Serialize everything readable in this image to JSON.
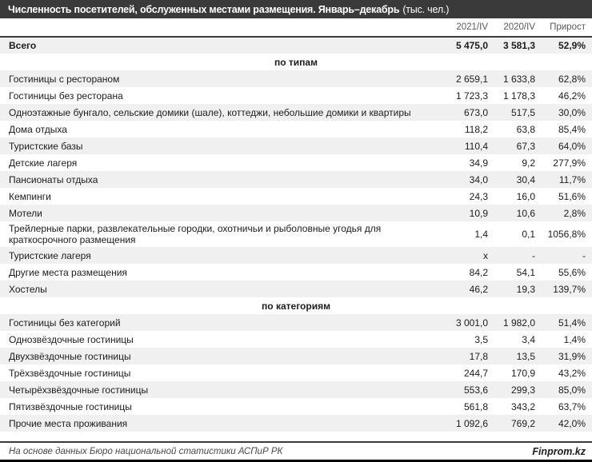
{
  "title": {
    "main": "Численность посетителей, обслуженных местами размещения. Январь–декабрь",
    "units": "(тыс. чел.)"
  },
  "chart_data": {
    "type": "table",
    "title": "Численность посетителей, обслуженных местами размещения. Январь–декабрь (тыс. чел.)",
    "columns": [
      "2021/IV",
      "2020/IV",
      "Прирост"
    ],
    "rows": [
      {
        "kind": "total",
        "label": "Всего",
        "values": [
          "5 475,0",
          "3 581,3",
          "52,9%"
        ]
      },
      {
        "kind": "section",
        "label": "по типам",
        "values": []
      },
      {
        "kind": "data",
        "label": "Гостиницы с рестораном",
        "values": [
          "2 659,1",
          "1 633,8",
          "62,8%"
        ]
      },
      {
        "kind": "data",
        "label": "Гостиницы без ресторана",
        "values": [
          "1 723,3",
          "1 178,3",
          "46,2%"
        ]
      },
      {
        "kind": "data",
        "label": "Одноэтажные бунгало, сельские домики (шале), коттеджи, небольшие домики и квартиры",
        "values": [
          "673,0",
          "517,5",
          "30,0%"
        ]
      },
      {
        "kind": "data",
        "label": "Дома отдыха",
        "values": [
          "118,2",
          "63,8",
          "85,4%"
        ]
      },
      {
        "kind": "data",
        "label": "Туристские базы",
        "values": [
          "110,4",
          "67,3",
          "64,0%"
        ]
      },
      {
        "kind": "data",
        "label": "Детские лагеря",
        "values": [
          "34,9",
          "9,2",
          "277,9%"
        ]
      },
      {
        "kind": "data",
        "label": "Пансионаты отдыха",
        "values": [
          "34,0",
          "30,4",
          "11,7%"
        ]
      },
      {
        "kind": "data",
        "label": "Кемпинги",
        "values": [
          "24,3",
          "16,0",
          "51,6%"
        ]
      },
      {
        "kind": "data",
        "label": "Мотели",
        "values": [
          "10,9",
          "10,6",
          "2,8%"
        ]
      },
      {
        "kind": "data",
        "label": "Трейлерные парки, развлекательные городки, охотничьи и рыболовные угодья для краткосрочного размещения",
        "values": [
          "1,4",
          "0,1",
          "1056,8%"
        ]
      },
      {
        "kind": "data",
        "label": "Туристские лагеря",
        "values": [
          "x",
          "-",
          "-"
        ]
      },
      {
        "kind": "data",
        "label": "Другие места размещения",
        "values": [
          "84,2",
          "54,1",
          "55,6%"
        ]
      },
      {
        "kind": "data",
        "label": "Хостелы",
        "values": [
          "46,2",
          "19,3",
          "139,7%"
        ]
      },
      {
        "kind": "section",
        "label": "по категориям",
        "values": []
      },
      {
        "kind": "data",
        "label": "Гостиницы без категорий",
        "values": [
          "3 001,0",
          "1 982,0",
          "51,4%"
        ]
      },
      {
        "kind": "data",
        "label": "Однозвёздочные гостиницы",
        "values": [
          "3,5",
          "3,4",
          "1,4%"
        ]
      },
      {
        "kind": "data",
        "label": "Двухзвёздочные гостиницы",
        "values": [
          "17,8",
          "13,5",
          "31,9%"
        ]
      },
      {
        "kind": "data",
        "label": "Трёхзвёздочные гостиницы",
        "values": [
          "244,7",
          "170,9",
          "43,2%"
        ]
      },
      {
        "kind": "data",
        "label": "Четырёхзвёздочные гостиницы",
        "values": [
          "553,6",
          "299,3",
          "85,0%"
        ]
      },
      {
        "kind": "data",
        "label": "Пятизвёздочные гостиницы",
        "values": [
          "561,8",
          "343,2",
          "63,7%"
        ]
      },
      {
        "kind": "data",
        "label": "Прочие места проживания",
        "values": [
          "1 092,6",
          "769,2",
          "42,0%"
        ]
      }
    ]
  },
  "footer": {
    "source": "На основе данных Бюро национальной статистики АСПиР РК",
    "brand": "Finprom.kz"
  },
  "colors": {
    "title_bar_bg": "#3a3a3a",
    "title_text": "#ffffff",
    "stripe": "#f0f0f0",
    "heavy_border": "#3a3a3a",
    "header_text": "#595959",
    "body_text": "#1c1c1c",
    "bottom_bar": "#000000"
  }
}
